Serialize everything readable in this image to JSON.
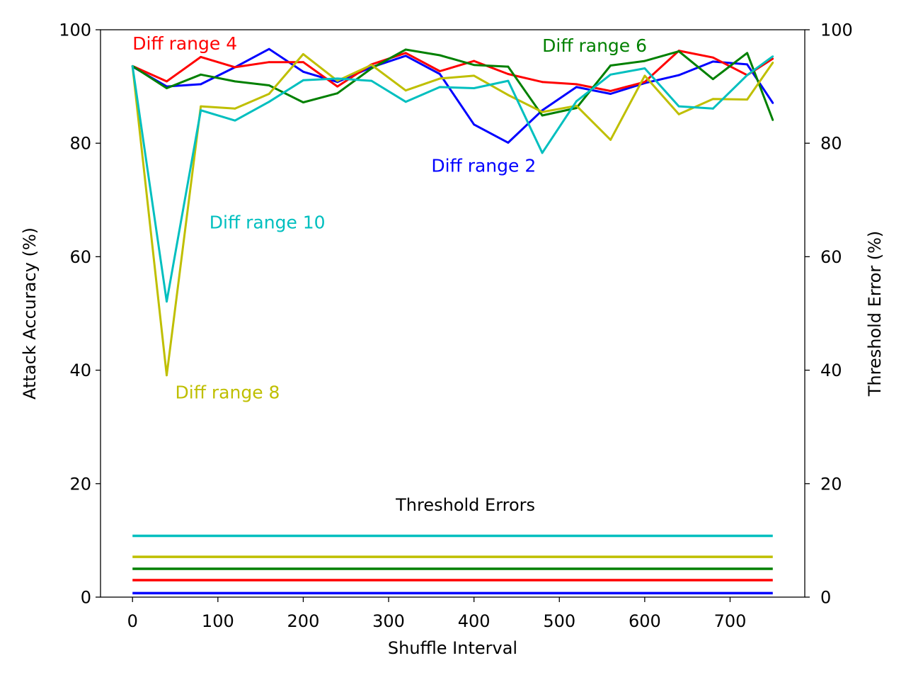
{
  "chart_data": {
    "type": "line",
    "xlabel": "Shuffle Interval",
    "ylabel": "Attack Accuracy (%)",
    "ylabel_right": "Threshold Error (%)",
    "xlim": [
      -37.5,
      787.5
    ],
    "ylim": [
      0,
      100
    ],
    "y2lim": [
      0,
      100
    ],
    "x_ticks": [
      0,
      100,
      200,
      300,
      400,
      500,
      600,
      700
    ],
    "y_ticks": [
      0,
      20,
      40,
      60,
      80,
      100
    ],
    "y2_ticks": [
      0,
      20,
      40,
      60,
      80,
      100
    ],
    "grid": false,
    "legend": "none",
    "x": [
      0,
      40,
      80,
      120,
      160,
      200,
      240,
      280,
      320,
      360,
      400,
      440,
      480,
      520,
      560,
      600,
      640,
      680,
      720,
      750
    ],
    "series": [
      {
        "name": "Diff range 2",
        "color": "#0000ff",
        "values": [
          93.5,
          90.0,
          90.4,
          93.4,
          96.6,
          92.6,
          90.8,
          93.4,
          95.4,
          92.2,
          83.3,
          80.1,
          85.8,
          89.9,
          88.7,
          90.6,
          92.0,
          94.4,
          93.9,
          87.1
        ]
      },
      {
        "name": "Diff range 4",
        "color": "#ff0000",
        "values": [
          93.6,
          90.9,
          95.2,
          93.4,
          94.3,
          94.3,
          90.0,
          93.9,
          95.9,
          92.7,
          94.5,
          92.2,
          90.8,
          90.4,
          89.2,
          90.8,
          96.3,
          95.1,
          92.0,
          94.9
        ]
      },
      {
        "name": "Diff range 6",
        "color": "#008000",
        "values": [
          93.6,
          89.7,
          92.1,
          90.9,
          90.2,
          87.2,
          88.8,
          93.2,
          96.5,
          95.5,
          93.8,
          93.5,
          84.9,
          86.2,
          93.7,
          94.5,
          96.2,
          91.3,
          95.9,
          84.1
        ]
      },
      {
        "name": "Diff range 8",
        "color": "#bfbf00",
        "values": [
          93.6,
          39.1,
          86.5,
          86.1,
          88.7,
          95.7,
          91.0,
          93.8,
          89.3,
          91.4,
          91.9,
          88.5,
          85.5,
          86.6,
          80.6,
          91.9,
          85.1,
          87.8,
          87.7,
          94.2
        ]
      },
      {
        "name": "Diff range 10",
        "color": "#00bfbf",
        "values": [
          93.6,
          52.1,
          85.8,
          84.0,
          87.3,
          91.1,
          91.4,
          91.0,
          87.3,
          89.9,
          89.7,
          91.0,
          78.3,
          87.4,
          92.1,
          93.2,
          86.5,
          86.1,
          92.0,
          95.3
        ]
      }
    ],
    "threshold_errors": {
      "label": "Threshold Errors",
      "x_range": [
        0,
        750
      ],
      "lines": [
        {
          "color": "#00bfbf",
          "value": 10.8
        },
        {
          "color": "#bfbf00",
          "value": 7.1
        },
        {
          "color": "#008000",
          "value": 5.0
        },
        {
          "color": "#ff0000",
          "value": 3.0
        },
        {
          "color": "#0000ff",
          "value": 0.7
        }
      ]
    },
    "annotations": [
      {
        "text": "Diff range 4",
        "color": "#ff0000",
        "x": 0,
        "y": 96.5,
        "anchor": "start"
      },
      {
        "text": "Diff range 6",
        "color": "#008000",
        "x": 480,
        "y": 96.1,
        "anchor": "start"
      },
      {
        "text": "Diff range 2",
        "color": "#0000ff",
        "x": 350,
        "y": 75.0,
        "anchor": "start"
      },
      {
        "text": "Diff range 10",
        "color": "#00bfbf",
        "x": 90,
        "y": 65.0,
        "anchor": "start"
      },
      {
        "text": "Diff range 8",
        "color": "#bfbf00",
        "x": 50,
        "y": 35.0,
        "anchor": "start"
      }
    ]
  }
}
